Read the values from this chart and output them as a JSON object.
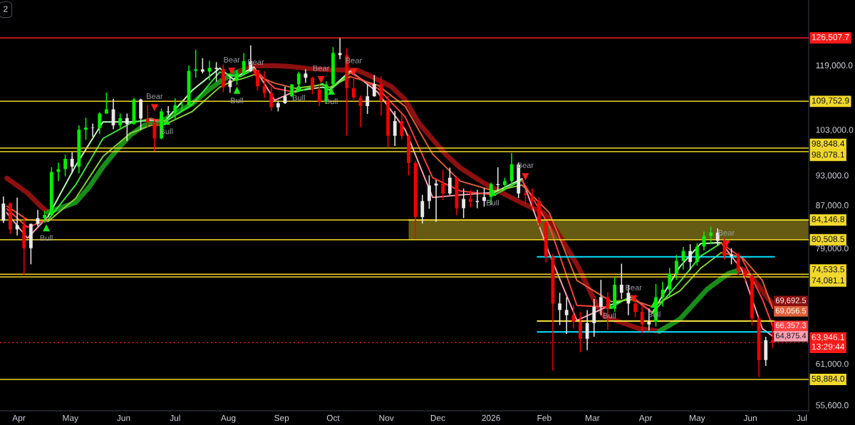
{
  "chart_data": {
    "type": "candlestick",
    "log": true,
    "xlim": [
      "2025-03-21",
      "2026-07-05"
    ],
    "ylim": [
      54900,
      137700
    ],
    "xticks": [
      {
        "value": "2025-04-01",
        "label": "Apr"
      },
      {
        "value": "2025-05-01",
        "label": "May"
      },
      {
        "value": "2025-06-01",
        "label": "Jun"
      },
      {
        "value": "2025-07-01",
        "label": "Jul"
      },
      {
        "value": "2025-08-01",
        "label": "Aug"
      },
      {
        "value": "2025-09-01",
        "label": "Sep"
      },
      {
        "value": "2025-10-01",
        "label": "Oct"
      },
      {
        "value": "2025-11-01",
        "label": "Nov"
      },
      {
        "value": "2025-12-01",
        "label": "Dec"
      },
      {
        "value": "2026-01-01",
        "label": "2026"
      },
      {
        "value": "2026-02-01",
        "label": "Feb"
      },
      {
        "value": "2026-03-01",
        "label": "Mar"
      },
      {
        "value": "2026-04-01",
        "label": "Apr"
      },
      {
        "value": "2026-05-01",
        "label": "May"
      },
      {
        "value": "2026-06-01",
        "label": "Jun"
      },
      {
        "value": "2026-07-01",
        "label": "Jul"
      }
    ],
    "yticks": [
      {
        "value": 119000,
        "label": "119,000.0"
      },
      {
        "value": 103000,
        "label": "103,000.0"
      },
      {
        "value": 93000,
        "label": "93,000.0"
      },
      {
        "value": 87000,
        "label": "87,000.0"
      },
      {
        "value": 79000,
        "label": "79,000.0"
      },
      {
        "value": 61000,
        "label": "61,000.0"
      },
      {
        "value": 55600,
        "label": "55,600.0"
      }
    ],
    "x": [
      "2025-03-23",
      "2025-03-27",
      "2025-03-31",
      "2025-04-04",
      "2025-04-08",
      "2025-04-12",
      "2025-04-16",
      "2025-04-20",
      "2025-04-24",
      "2025-04-28",
      "2025-05-02",
      "2025-05-06",
      "2025-05-10",
      "2025-05-14",
      "2025-05-18",
      "2025-05-22",
      "2025-05-26",
      "2025-05-30",
      "2025-06-03",
      "2025-06-07",
      "2025-06-11",
      "2025-06-15",
      "2025-06-19",
      "2025-06-23",
      "2025-06-27",
      "2025-07-01",
      "2025-07-05",
      "2025-07-09",
      "2025-07-13",
      "2025-07-17",
      "2025-07-21",
      "2025-07-25",
      "2025-07-29",
      "2025-08-02",
      "2025-08-06",
      "2025-08-10",
      "2025-08-14",
      "2025-08-18",
      "2025-08-22",
      "2025-08-26",
      "2025-08-30",
      "2025-09-03",
      "2025-09-07",
      "2025-09-11",
      "2025-09-15",
      "2025-09-19",
      "2025-09-23",
      "2025-09-27",
      "2025-10-01",
      "2025-10-05",
      "2025-10-09",
      "2025-10-13",
      "2025-10-17",
      "2025-10-21",
      "2025-10-25",
      "2025-10-29",
      "2025-11-02",
      "2025-11-06",
      "2025-11-10",
      "2025-11-14",
      "2025-11-18",
      "2025-11-22",
      "2025-11-26",
      "2025-11-30",
      "2025-12-04",
      "2025-12-08",
      "2025-12-12",
      "2025-12-16",
      "2025-12-20",
      "2025-12-24",
      "2025-12-28",
      "2026-01-01",
      "2026-01-05",
      "2026-01-09",
      "2026-01-13",
      "2026-01-17",
      "2026-01-21",
      "2026-01-25",
      "2026-01-29",
      "2026-02-02",
      "2026-02-06",
      "2026-02-10",
      "2026-02-14",
      "2026-02-18",
      "2026-02-22",
      "2026-02-26",
      "2026-03-02",
      "2026-03-06",
      "2026-03-10",
      "2026-03-14",
      "2026-03-18",
      "2026-03-22",
      "2026-03-26",
      "2026-03-30",
      "2026-04-03",
      "2026-04-07",
      "2026-04-11",
      "2026-04-15",
      "2026-04-19",
      "2026-04-23",
      "2026-04-27",
      "2026-05-01",
      "2026-05-05",
      "2026-05-09",
      "2026-05-13",
      "2026-05-17",
      "2026-05-21",
      "2026-05-25",
      "2026-05-29",
      "2026-06-02",
      "2026-06-06",
      "2026-06-10",
      "2026-06-14"
    ],
    "ohlc": [
      [
        84000,
        88700,
        83600,
        87300
      ],
      [
        87300,
        87500,
        81600,
        82400
      ],
      [
        82400,
        88500,
        81300,
        83200
      ],
      [
        83200,
        84700,
        74500,
        79000
      ],
      [
        79000,
        83500,
        76200,
        83400
      ],
      [
        83400,
        86100,
        83000,
        84500
      ],
      [
        84500,
        85900,
        83600,
        85100
      ],
      [
        85100,
        94700,
        84900,
        93700
      ],
      [
        93700,
        95700,
        91800,
        94300
      ],
      [
        94300,
        97400,
        92800,
        96500
      ],
      [
        96500,
        97900,
        93400,
        94800
      ],
      [
        94800,
        104000,
        93400,
        103000
      ],
      [
        103000,
        105800,
        100700,
        103500
      ],
      [
        103500,
        104400,
        101400,
        103400
      ],
      [
        103400,
        107100,
        102000,
        106800
      ],
      [
        106800,
        111900,
        106700,
        107800
      ],
      [
        107800,
        110400,
        103100,
        104000
      ],
      [
        104000,
        106800,
        103100,
        105700
      ],
      [
        105700,
        106800,
        100400,
        104300
      ],
      [
        104300,
        110600,
        104200,
        110200
      ],
      [
        110200,
        110400,
        103000,
        105600
      ],
      [
        105600,
        108900,
        103500,
        104700
      ],
      [
        104700,
        105300,
        98200,
        101000
      ],
      [
        101000,
        108000,
        100800,
        107300
      ],
      [
        107300,
        108600,
        106400,
        107100
      ],
      [
        107100,
        110500,
        105300,
        108800
      ],
      [
        108800,
        109700,
        107500,
        108900
      ],
      [
        108900,
        118900,
        108300,
        117500
      ],
      [
        117500,
        123200,
        115700,
        117900
      ],
      [
        117900,
        120900,
        116800,
        117300
      ],
      [
        117300,
        120200,
        115000,
        118300
      ],
      [
        118300,
        119800,
        114700,
        118000
      ],
      [
        118000,
        119200,
        112000,
        113300
      ],
      [
        113300,
        115700,
        111900,
        115000
      ],
      [
        115000,
        117600,
        113800,
        116700
      ],
      [
        116700,
        122300,
        116600,
        120100
      ],
      [
        120100,
        124400,
        117200,
        117400
      ],
      [
        117400,
        117600,
        112400,
        113500
      ],
      [
        113500,
        117400,
        110600,
        111800
      ],
      [
        111800,
        113400,
        107400,
        108300
      ],
      [
        108300,
        109900,
        107300,
        109300
      ],
      [
        109300,
        113400,
        109100,
        111000
      ],
      [
        111000,
        114100,
        110800,
        114000
      ],
      [
        114000,
        117300,
        113200,
        116800
      ],
      [
        116800,
        117900,
        114400,
        115700
      ],
      [
        115700,
        116000,
        111500,
        112700
      ],
      [
        112700,
        114000,
        108600,
        109600
      ],
      [
        109600,
        114800,
        109100,
        114000
      ],
      [
        114000,
        123900,
        113600,
        122300
      ],
      [
        122300,
        126500,
        120600,
        121700
      ],
      [
        121700,
        123700,
        101700,
        113000
      ],
      [
        113000,
        115900,
        110200,
        110700
      ],
      [
        110700,
        111200,
        103600,
        108600
      ],
      [
        108600,
        114000,
        106700,
        111000
      ],
      [
        111000,
        116400,
        110900,
        114100
      ],
      [
        114100,
        116000,
        106300,
        110000
      ],
      [
        110000,
        111200,
        98900,
        101600
      ],
      [
        101600,
        107400,
        99300,
        105000
      ],
      [
        105000,
        106700,
        100800,
        101600
      ],
      [
        101600,
        102000,
        93000,
        95600
      ],
      [
        95600,
        96000,
        80600,
        84700
      ],
      [
        84700,
        89000,
        83500,
        87800
      ],
      [
        87800,
        93000,
        86300,
        90900
      ],
      [
        90900,
        92000,
        83800,
        91300
      ],
      [
        91300,
        94100,
        88000,
        89300
      ],
      [
        89300,
        94600,
        89000,
        92500
      ],
      [
        92500,
        92800,
        85100,
        86400
      ],
      [
        86400,
        90300,
        84500,
        88200
      ],
      [
        88200,
        90000,
        86600,
        87600
      ],
      [
        87600,
        90000,
        86400,
        87800
      ],
      [
        87800,
        90400,
        86700,
        88600
      ],
      [
        88600,
        91500,
        87000,
        91200
      ],
      [
        91200,
        94700,
        89800,
        91000
      ],
      [
        91000,
        92500,
        89900,
        91800
      ],
      [
        91800,
        97800,
        91000,
        95300
      ],
      [
        95300,
        95600,
        88400,
        89300
      ],
      [
        89300,
        90000,
        87200,
        89000
      ],
      [
        89000,
        90300,
        86200,
        87800
      ],
      [
        87800,
        88500,
        82800,
        83600
      ],
      [
        83600,
        84000,
        76500,
        77500
      ],
      [
        77500,
        78000,
        60100,
        69800
      ],
      [
        69800,
        71500,
        66500,
        68800
      ],
      [
        68800,
        70800,
        65200,
        68000
      ],
      [
        68000,
        69500,
        66000,
        67000
      ],
      [
        67000,
        68500,
        62600,
        64500
      ],
      [
        64500,
        68800,
        62900,
        66800
      ],
      [
        66800,
        70500,
        64800,
        69300
      ],
      [
        69300,
        73600,
        68000,
        70800
      ],
      [
        70800,
        71600,
        65800,
        69000
      ],
      [
        69000,
        74000,
        68500,
        72800
      ],
      [
        72800,
        76300,
        70500,
        71500
      ],
      [
        71500,
        72800,
        68000,
        69800
      ],
      [
        69800,
        71200,
        67700,
        68500
      ],
      [
        68500,
        69500,
        65300,
        66600
      ],
      [
        66600,
        69000,
        65700,
        67000
      ],
      [
        67000,
        72900,
        66300,
        70800
      ],
      [
        70800,
        73300,
        69300,
        72000
      ],
      [
        72000,
        75600,
        71000,
        74600
      ],
      [
        74600,
        77800,
        73600,
        76800
      ],
      [
        76800,
        79200,
        75300,
        78500
      ],
      [
        78500,
        79700,
        75200,
        76600
      ],
      [
        76600,
        79900,
        76000,
        79300
      ],
      [
        79300,
        82000,
        78600,
        81200
      ],
      [
        81200,
        82900,
        79800,
        81800
      ],
      [
        81800,
        82600,
        79500,
        80300
      ],
      [
        80300,
        80800,
        77000,
        77600
      ],
      [
        77600,
        79000,
        76200,
        77900
      ],
      [
        77900,
        78200,
        74400,
        75000
      ],
      [
        75000,
        75600,
        73300,
        74200
      ],
      [
        74200,
        74600,
        66500,
        67500
      ],
      [
        67500,
        68000,
        59200,
        61500
      ],
      [
        61500,
        64800,
        60700,
        64300
      ],
      [
        64300,
        66900,
        63200,
        63946.1
      ]
    ],
    "colors": [
      "#e8e8e8",
      "#f20000",
      "#e8e8e8",
      "#f20000",
      "#e8e8e8",
      "#e8e8e8",
      "#00f000",
      "#00f000",
      "#00f000",
      "#00f000",
      "#e8e8e8",
      "#00f000",
      "#00f000",
      "#e8e8e8",
      "#00f000",
      "#00f000",
      "#e8e8e8",
      "#00f000",
      "#e8e8e8",
      "#00f000",
      "#e8e8e8",
      "#f20000",
      "#f20000",
      "#00f000",
      "#e8e8e8",
      "#00f000",
      "#00f000",
      "#00f000",
      "#00f000",
      "#e8e8e8",
      "#00f000",
      "#e8e8e8",
      "#f20000",
      "#e8e8e8",
      "#00f000",
      "#00f000",
      "#e8e8e8",
      "#f20000",
      "#f20000",
      "#f20000",
      "#e8e8e8",
      "#e8e8e8",
      "#00f000",
      "#00f000",
      "#e8e8e8",
      "#f20000",
      "#f20000",
      "#00f000",
      "#00f000",
      "#e8e8e8",
      "#f20000",
      "#f20000",
      "#f20000",
      "#e8e8e8",
      "#e8e8e8",
      "#f20000",
      "#f20000",
      "#e8e8e8",
      "#f20000",
      "#f20000",
      "#f20000",
      "#e8e8e8",
      "#e8e8e8",
      "#e8e8e8",
      "#f20000",
      "#e8e8e8",
      "#f20000",
      "#e8e8e8",
      "#f20000",
      "#e8e8e8",
      "#e8e8e8",
      "#00f000",
      "#e8e8e8",
      "#00f000",
      "#00f000",
      "#e8e8e8",
      "#f20000",
      "#f20000",
      "#f20000",
      "#f20000",
      "#f20000",
      "#e8e8e8",
      "#e8e8e8",
      "#f20000",
      "#f20000",
      "#e8e8e8",
      "#e8e8e8",
      "#e8e8e8",
      "#f20000",
      "#00f000",
      "#e8e8e8",
      "#e8e8e8",
      "#f20000",
      "#f20000",
      "#e8e8e8",
      "#00f000",
      "#00f000",
      "#00f000",
      "#00f000",
      "#00f000",
      "#e8e8e8",
      "#00f000",
      "#00f000",
      "#00f000",
      "#e8e8e8",
      "#f20000",
      "#e8e8e8",
      "#f20000",
      "#f20000",
      "#f20000",
      "#f20000",
      "#e8e8e8",
      "#f20000"
    ],
    "series": [
      {
        "type": "line",
        "color": "#8c1010",
        "x": [
          "2025-03-25",
          "2025-04-06",
          "2025-04-14",
          "2025-04-18"
        ],
        "values": [
          92400,
          89400,
          86700,
          85600
        ]
      },
      {
        "type": "line",
        "color": "#1a8c1a",
        "x": [
          "2025-04-18",
          "2025-05-04",
          "2025-05-12",
          "2025-05-20",
          "2025-05-28",
          "2025-06-05",
          "2025-06-13",
          "2025-06-25",
          "2025-07-11",
          "2025-07-19",
          "2025-07-27",
          "2025-08-04",
          "2025-08-08"
        ],
        "values": [
          85600,
          87500,
          90600,
          94800,
          98400,
          101800,
          104000,
          105400,
          109200,
          112100,
          114700,
          116800,
          117500
        ]
      },
      {
        "type": "line",
        "color": "#8c1010",
        "x": [
          "2025-08-08",
          "2025-08-16",
          "2025-08-28",
          "2025-09-05",
          "2025-09-17",
          "2025-09-29",
          "2025-10-15",
          "2025-10-23",
          "2025-11-04",
          "2025-11-12",
          "2025-11-20",
          "2025-11-28",
          "2025-12-06",
          "2025-12-14",
          "2025-12-26",
          "2026-01-07",
          "2026-01-19",
          "2026-01-31",
          "2026-02-04",
          "2026-02-20",
          "2026-03-04",
          "2026-03-08",
          "2026-03-28",
          "2026-04-09"
        ],
        "values": [
          117500,
          118800,
          118900,
          118700,
          118100,
          117800,
          117700,
          116100,
          113400,
          110100,
          104500,
          100800,
          97300,
          94600,
          91800,
          89500,
          87400,
          85600,
          84300,
          76200,
          69300,
          67800,
          66000,
          65600
        ]
      },
      {
        "type": "line",
        "color": "#1a8c1a",
        "x": [
          "2026-04-09",
          "2026-04-21",
          "2026-05-07",
          "2026-05-19",
          "2026-05-27"
        ],
        "values": [
          65600,
          67400,
          72100,
          74600,
          75400
        ]
      },
      {
        "type": "line",
        "color": "#8c1010",
        "x": [
          "2026-05-27",
          "2026-06-04",
          "2026-06-14"
        ],
        "values": [
          75400,
          73300,
          69692.5
        ],
        "value_labels": [
          null,
          null,
          "69,692.5"
        ]
      },
      {
        "type": "line",
        "color": "#ffa0b0",
        "x": [
          "2025-03-25",
          "2025-04-06",
          "2025-04-18"
        ],
        "values": [
          85500,
          80800,
          84800
        ]
      },
      {
        "type": "line",
        "color": "#b8ffb8",
        "x": [
          "2025-04-18",
          "2025-05-04",
          "2025-05-20",
          "2025-06-05",
          "2025-06-17"
        ],
        "values": [
          84800,
          95000,
          104800,
          104800,
          105200
        ]
      },
      {
        "type": "line",
        "color": "#ffa0b0",
        "x": [
          "2025-06-17",
          "2025-06-25"
        ],
        "values": [
          105200,
          105000
        ]
      },
      {
        "type": "line",
        "color": "#b8ffb8",
        "x": [
          "2025-06-25",
          "2025-07-11",
          "2025-07-27",
          "2025-08-04",
          "2025-08-08",
          "2025-08-16"
        ],
        "values": [
          105000,
          112500,
          118200,
          115300,
          116500,
          118500
        ]
      },
      {
        "type": "line",
        "color": "#ffa0b0",
        "x": [
          "2025-08-16",
          "2025-08-28",
          "2025-09-09"
        ],
        "values": [
          118500,
          110000,
          112300
        ]
      },
      {
        "type": "line",
        "color": "#b8ffb8",
        "x": [
          "2025-09-09",
          "2025-09-25",
          "2025-09-29",
          "2025-10-11"
        ],
        "values": [
          112300,
          113300,
          112600,
          117500
        ]
      },
      {
        "type": "line",
        "color": "#ffa0b0",
        "x": [
          "2025-10-11",
          "2025-10-27",
          "2025-11-12",
          "2025-11-28",
          "2025-12-14",
          "2026-01-03"
        ],
        "values": [
          117500,
          112000,
          103000,
          88500,
          89000,
          89500
        ]
      },
      {
        "type": "line",
        "color": "#b8ffb8",
        "x": [
          "2026-01-03",
          "2026-01-19"
        ],
        "values": [
          89500,
          92300
        ]
      },
      {
        "type": "line",
        "color": "#ffa0b0",
        "x": [
          "2026-01-19",
          "2026-02-04",
          "2026-02-20",
          "2026-03-12"
        ],
        "values": [
          92300,
          78000,
          67200,
          69600
        ]
      },
      {
        "type": "line",
        "color": "#b8ffb8",
        "x": [
          "2026-03-12",
          "2026-03-24"
        ],
        "values": [
          69600,
          70800
        ]
      },
      {
        "type": "line",
        "color": "#ffa0b0",
        "x": [
          "2026-03-24",
          "2026-04-05"
        ],
        "values": [
          70800,
          68400
        ]
      },
      {
        "type": "line",
        "color": "#b8ffb8",
        "x": [
          "2026-04-05",
          "2026-04-21",
          "2026-05-03",
          "2026-05-15"
        ],
        "values": [
          68400,
          75800,
          79800,
          80000
        ]
      },
      {
        "type": "line",
        "color": "#ffa0b0",
        "x": [
          "2026-05-15",
          "2026-05-27",
          "2026-06-08",
          "2026-06-14"
        ],
        "values": [
          80000,
          75300,
          66000,
          64875.4
        ],
        "value_labels": [
          null,
          null,
          null,
          "64,875.4"
        ]
      },
      {
        "type": "line",
        "color": "#ff4040",
        "x": [
          "2025-03-25",
          "2025-04-06",
          "2025-04-18"
        ],
        "values": [
          86300,
          82800,
          84200
        ]
      },
      {
        "type": "line",
        "color": "#3ce63c",
        "x": [
          "2025-04-18",
          "2025-05-04",
          "2025-05-20",
          "2025-06-05",
          "2025-06-17"
        ],
        "values": [
          84200,
          91000,
          101000,
          104500,
          105600
        ]
      },
      {
        "type": "line",
        "color": "#ff4040",
        "x": [
          "2025-06-17",
          "2025-06-25"
        ],
        "values": [
          105600,
          104800
        ]
      },
      {
        "type": "line",
        "color": "#3ce63c",
        "x": [
          "2025-06-25",
          "2025-07-11",
          "2025-07-27",
          "2025-08-04",
          "2025-08-08",
          "2025-08-16"
        ],
        "values": [
          104800,
          109000,
          117200,
          116200,
          116000,
          118000
        ]
      },
      {
        "type": "line",
        "color": "#ff4040",
        "x": [
          "2025-08-16",
          "2025-08-28",
          "2025-09-09"
        ],
        "values": [
          118000,
          113000,
          112000
        ]
      },
      {
        "type": "line",
        "color": "#3ce63c",
        "x": [
          "2025-09-09",
          "2025-09-25",
          "2025-09-29",
          "2025-10-11"
        ],
        "values": [
          112000,
          114200,
          112400,
          117000
        ]
      },
      {
        "type": "line",
        "color": "#ff4040",
        "x": [
          "2025-10-11",
          "2025-10-27",
          "2025-11-12",
          "2025-11-28",
          "2025-12-14",
          "2026-01-03"
        ],
        "values": [
          117000,
          113000,
          106000,
          92500,
          89800,
          89000
        ]
      },
      {
        "type": "line",
        "color": "#3ce63c",
        "x": [
          "2026-01-03",
          "2026-01-19"
        ],
        "values": [
          89000,
          92000
        ]
      },
      {
        "type": "line",
        "color": "#ff4040",
        "x": [
          "2026-01-19",
          "2026-02-04",
          "2026-02-20",
          "2026-03-12"
        ],
        "values": [
          92000,
          83000,
          69500,
          69200
        ]
      },
      {
        "type": "line",
        "color": "#3ce63c",
        "x": [
          "2026-03-12",
          "2026-03-24"
        ],
        "values": [
          69200,
          71000
        ]
      },
      {
        "type": "line",
        "color": "#ff4040",
        "x": [
          "2026-03-24",
          "2026-04-05"
        ],
        "values": [
          71000,
          68300
        ]
      },
      {
        "type": "line",
        "color": "#3ce63c",
        "x": [
          "2026-04-05",
          "2026-04-21",
          "2026-05-03",
          "2026-05-15"
        ],
        "values": [
          68300,
          73300,
          77600,
          79900
        ]
      },
      {
        "type": "line",
        "color": "#ff4040",
        "x": [
          "2026-05-15",
          "2026-05-27",
          "2026-06-08",
          "2026-06-14"
        ],
        "values": [
          79900,
          77300,
          70500,
          66357.3
        ],
        "value_labels": [
          null,
          null,
          null,
          "66,357.3"
        ]
      },
      {
        "type": "line",
        "color": "#e0603a",
        "x": [
          "2025-03-25",
          "2025-04-06",
          "2025-04-18"
        ],
        "values": [
          86800,
          84200,
          83900
        ]
      },
      {
        "type": "line",
        "color": "#86d13a",
        "x": [
          "2025-04-18",
          "2025-05-04",
          "2025-05-20",
          "2025-06-05",
          "2025-06-17"
        ],
        "values": [
          83900,
          88300,
          97000,
          102200,
          104000
        ]
      },
      {
        "type": "line",
        "color": "#e0603a",
        "x": [
          "2025-06-17",
          "2025-06-25"
        ],
        "values": [
          104000,
          104200
        ]
      },
      {
        "type": "line",
        "color": "#86d13a",
        "x": [
          "2025-06-25",
          "2025-07-11",
          "2025-07-27",
          "2025-08-04",
          "2025-08-08",
          "2025-08-16"
        ],
        "values": [
          104200,
          107300,
          113300,
          115000,
          115300,
          116500
        ]
      },
      {
        "type": "line",
        "color": "#e0603a",
        "x": [
          "2025-08-16",
          "2025-08-28",
          "2025-09-09"
        ],
        "values": [
          116500,
          114300,
          113000
        ]
      },
      {
        "type": "line",
        "color": "#86d13a",
        "x": [
          "2025-09-09",
          "2025-09-25",
          "2025-09-29",
          "2025-10-11"
        ],
        "values": [
          113000,
          113900,
          113200,
          116000
        ]
      },
      {
        "type": "line",
        "color": "#e0603a",
        "x": [
          "2025-10-11",
          "2025-10-27",
          "2025-11-12",
          "2025-11-28",
          "2025-12-14",
          "2026-01-03"
        ],
        "values": [
          116000,
          113800,
          108500,
          97500,
          91800,
          89800
        ]
      },
      {
        "type": "line",
        "color": "#86d13a",
        "x": [
          "2026-01-03",
          "2026-01-19"
        ],
        "values": [
          89800,
          91000
        ]
      },
      {
        "type": "line",
        "color": "#e0603a",
        "x": [
          "2026-01-19",
          "2026-02-04",
          "2026-02-20",
          "2026-03-12"
        ],
        "values": [
          91000,
          85500,
          73500,
          70100
        ]
      },
      {
        "type": "line",
        "color": "#86d13a",
        "x": [
          "2026-03-12",
          "2026-03-24"
        ],
        "values": [
          70100,
          70400
        ]
      },
      {
        "type": "line",
        "color": "#e0603a",
        "x": [
          "2026-03-24",
          "2026-04-05"
        ],
        "values": [
          70400,
          69300
        ]
      },
      {
        "type": "line",
        "color": "#86d13a",
        "x": [
          "2026-04-05",
          "2026-04-21",
          "2026-05-03",
          "2026-05-15"
        ],
        "values": [
          69300,
          71800,
          75500,
          78200
        ]
      },
      {
        "type": "line",
        "color": "#e0603a",
        "x": [
          "2026-05-15",
          "2026-05-27",
          "2026-06-08",
          "2026-06-14"
        ],
        "values": [
          78200,
          77500,
          73500,
          69056.5
        ],
        "value_labels": [
          null,
          null,
          null,
          "69,056.5"
        ]
      },
      {
        "type": "scatter",
        "marker": "triangle",
        "color": "#1ee61e",
        "x": [
          "2025-04-17",
          "2025-06-26",
          "2025-08-06",
          "2025-09-11",
          "2025-09-30",
          "2026-01-02",
          "2026-03-11",
          "2026-04-06"
        ],
        "values": [
          82700,
          105000,
          112500,
          113200,
          112300,
          89500,
          69500,
          69700
        ],
        "value_labels": [
          "Bull",
          "Bull",
          "Bull",
          "Bull",
          "Bull",
          "Bull",
          "Bull",
          "Bull"
        ]
      },
      {
        "type": "scatter",
        "marker": "triangle-down",
        "color": "#ff1a1a",
        "x": [
          "2025-06-19",
          "2025-08-03",
          "2025-08-17",
          "2025-09-24",
          "2025-10-13",
          "2026-01-21",
          "2026-03-25",
          "2026-05-18"
        ],
        "values": [
          108200,
          117400,
          116800,
          115200,
          117200,
          92700,
          70500,
          79700
        ],
        "value_labels": [
          "Bear",
          "Bear",
          "Bear",
          "Bear",
          "Bear",
          "Bear",
          "Bear",
          "Bear"
        ]
      },
      {
        "type": "line",
        "color": "#00e5ff",
        "x": [
          "2026-01-28",
          "2026-06-15"
        ],
        "values": [
          77500,
          77500
        ]
      },
      {
        "type": "line",
        "color": "#00e5ff",
        "x": [
          "2026-01-28",
          "2026-06-15"
        ],
        "values": [
          65500,
          65500
        ]
      },
      {
        "type": "line",
        "color": "#f3df3f",
        "x": [
          "2026-01-28",
          "2026-06-15"
        ],
        "values": [
          67100,
          67100
        ]
      },
      {
        "type": "line",
        "color": "#f2d82b",
        "x": [
          "2025-11-14",
          "2026-07-05"
        ],
        "values": [
          84146.8,
          84146.8
        ],
        "lower": [
          80508.5,
          80508.5
        ],
        "upper": [
          84146.8,
          84146.8
        ]
      }
    ],
    "ref_lines": [
      {
        "axis": "y",
        "value": 126507.7,
        "label": "126,507.7",
        "color": "#ff1a1a"
      },
      {
        "axis": "y",
        "value": 109752.9,
        "label": "109,752.9",
        "color": "#f2d82b"
      },
      {
        "axis": "y",
        "value": 98848.4,
        "label": "98,848.4",
        "color": "#f2d82b"
      },
      {
        "axis": "y",
        "value": 98078.1,
        "label": "98,078.1",
        "color": "#f2d82b"
      },
      {
        "axis": "y",
        "value": 84146.8,
        "label": "84,146.8",
        "color": "#f2d82b"
      },
      {
        "axis": "y",
        "value": 80508.5,
        "label": "80,508.5",
        "color": "#f2d82b"
      },
      {
        "axis": "y",
        "value": 74533.5,
        "label": "74,533.5",
        "color": "#f2d82b"
      },
      {
        "axis": "y",
        "value": 74081.1,
        "label": "74,081.1",
        "color": "#f2d82b"
      },
      {
        "axis": "y",
        "value": 58884.0,
        "label": "58,884.0",
        "color": "#f2d82b"
      },
      {
        "axis": "y",
        "value": 63946.1,
        "label": "63,946.1\n13:29:44",
        "color": "#ff1a1a",
        "line_style": "dotted"
      }
    ],
    "annotations": [
      "2"
    ]
  }
}
